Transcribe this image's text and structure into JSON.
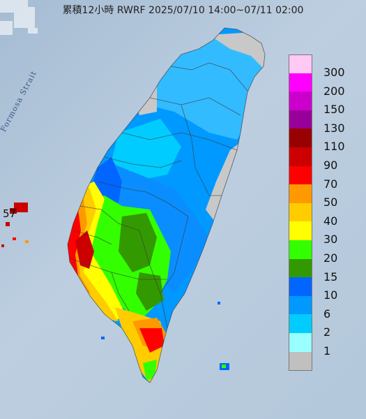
{
  "title": "累積12小時 RWRF 2025/07/10 14:00~07/11 02:00",
  "map_labels": {
    "strait": "Formosa Strait",
    "islet_value": "57"
  },
  "legend": [
    {
      "label": "300",
      "color": "#ffc8f5"
    },
    {
      "label": "200",
      "color": "#ff00ff"
    },
    {
      "label": "150",
      "color": "#cc00cc"
    },
    {
      "label": "130",
      "color": "#990099"
    },
    {
      "label": "110",
      "color": "#990000"
    },
    {
      "label": "90",
      "color": "#cc0000"
    },
    {
      "label": "70",
      "color": "#ff0000"
    },
    {
      "label": "50",
      "color": "#ff9900"
    },
    {
      "label": "40",
      "color": "#ffcc00"
    },
    {
      "label": "30",
      "color": "#ffff00"
    },
    {
      "label": "20",
      "color": "#33ff00"
    },
    {
      "label": "15",
      "color": "#339900"
    },
    {
      "label": "10",
      "color": "#0066ff"
    },
    {
      "label": "6",
      "color": "#0099ff"
    },
    {
      "label": "2",
      "color": "#00ccff"
    },
    {
      "label": "1",
      "color": "#99ffff"
    },
    {
      "label": "",
      "color": "#c0c0c0"
    }
  ]
}
